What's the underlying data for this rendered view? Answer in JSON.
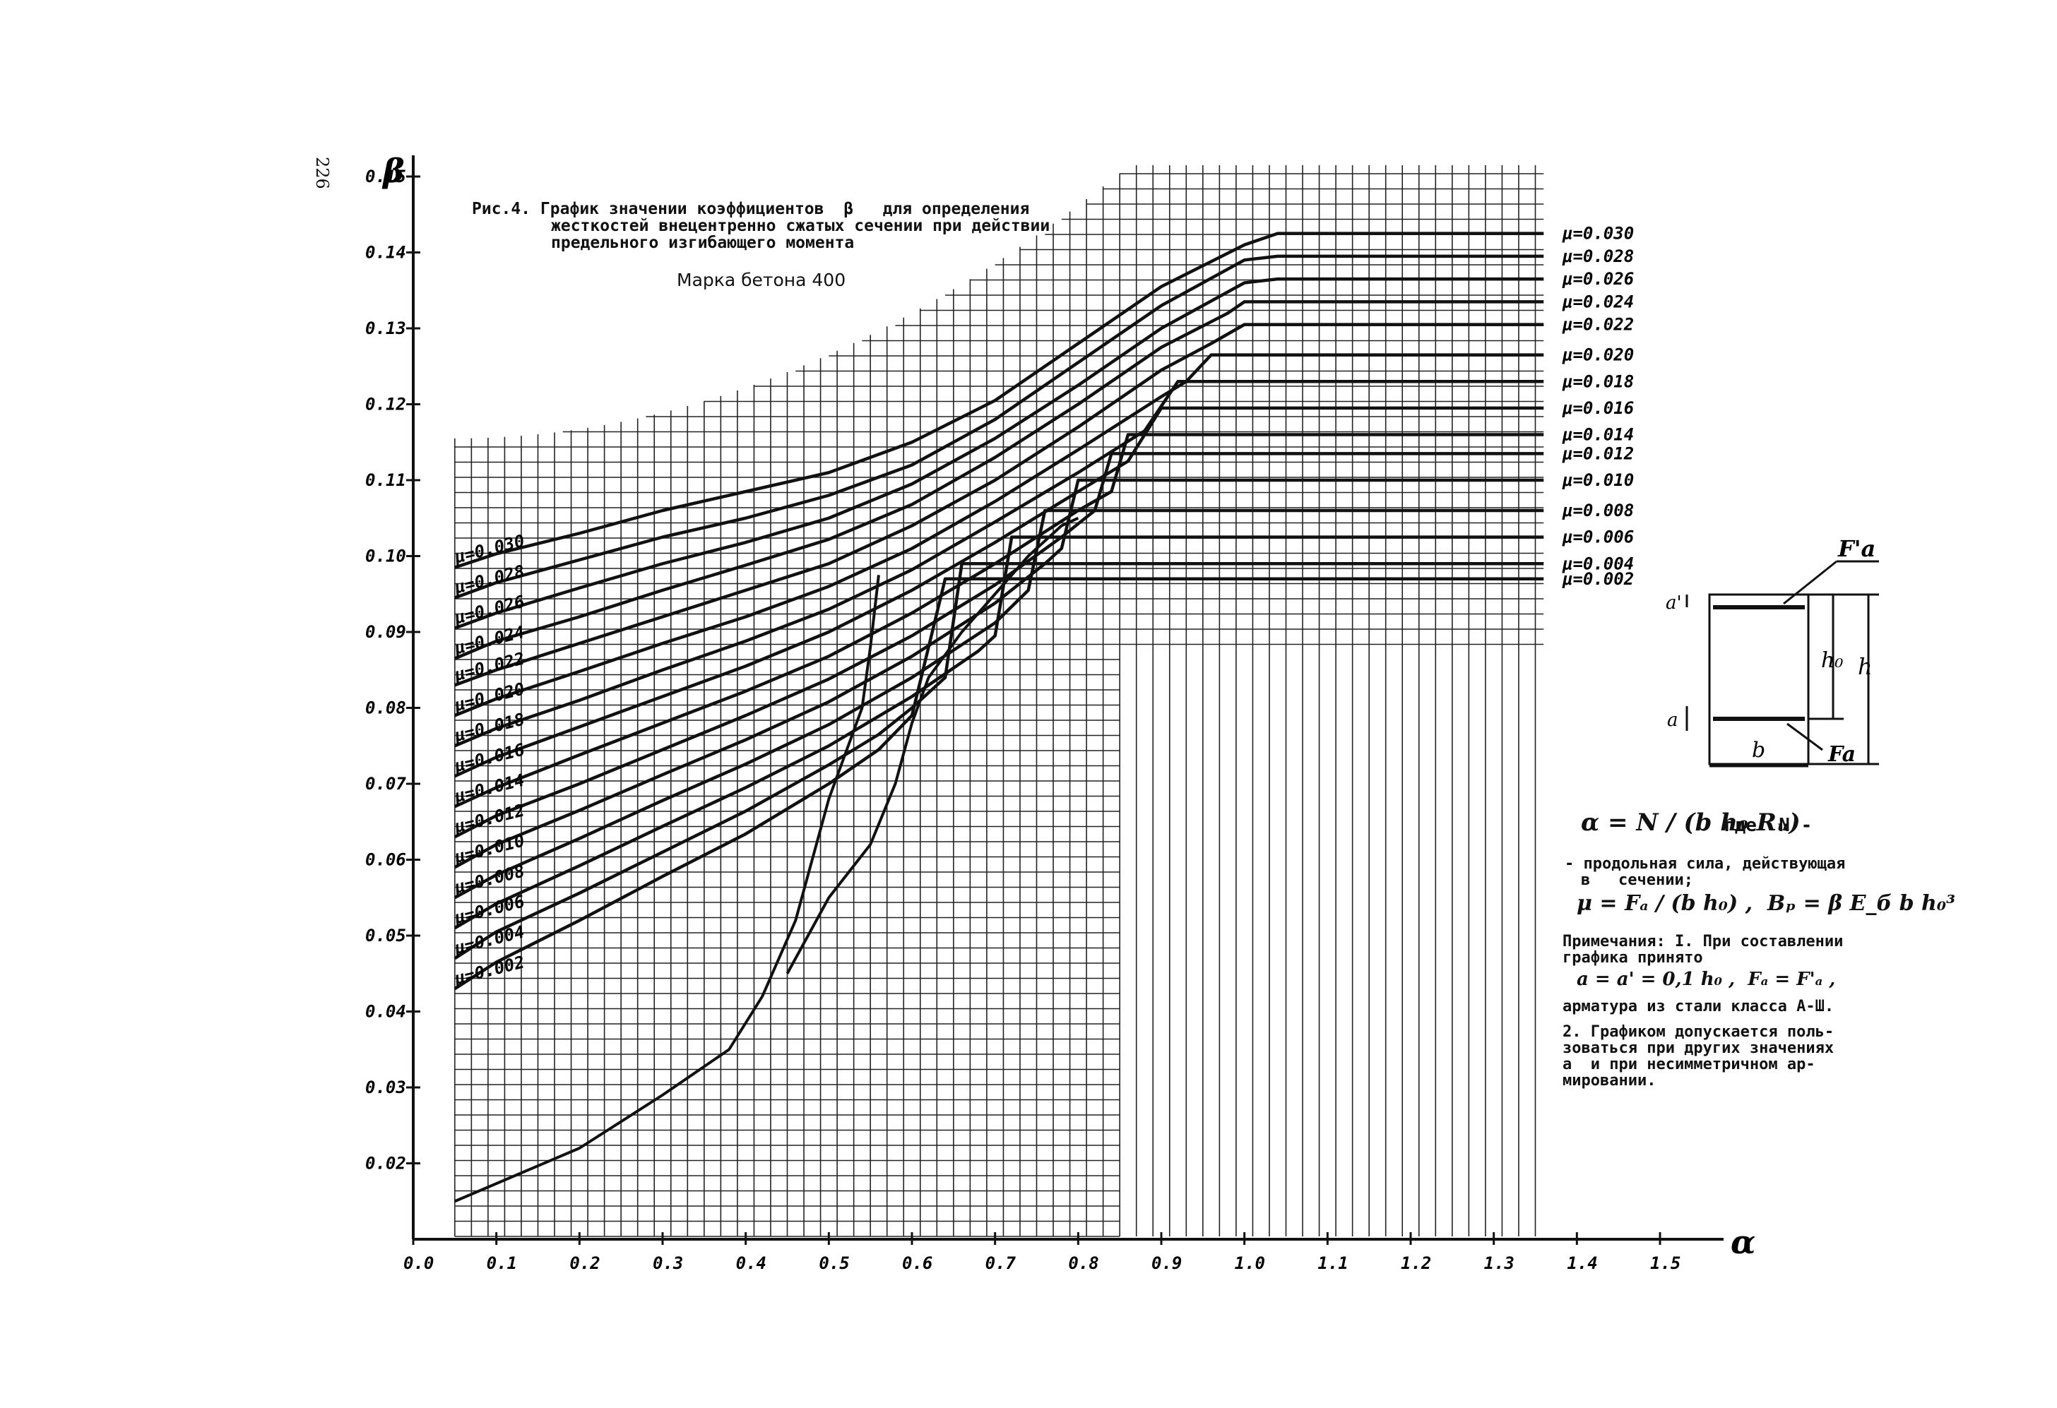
{
  "page_number": "226",
  "caption": {
    "line1": "Рис.4. График значении коэффициентов  β   для определения",
    "line2": "жесткостей внецентренно сжатых сечении при действии",
    "line3": "предельного изгибающего момента"
  },
  "concrete_grade": "Марка бетона 400",
  "notes": {
    "alpha_formula": "α = N / (b h₀ Rᵤ)",
    "where_label": "где  N -",
    "where_line1": "- продольная сила, действующая",
    "where_line2": "в   сечении;",
    "mu_formula": "μ = Fₐ / (b h₀) ,  Bₚ = β E_б b h₀³",
    "remarks_line1": "Примечания: I. При составлении",
    "remarks_line2": "графика принято",
    "remarks_formula": "a = a' = 0,1 h₀ ,  Fₐ = F'ₐ ,",
    "remarks_line3": "арматура из стали класса А-Ш.",
    "remarks_line4": "2. Графиком допускается поль-",
    "remarks_line5": "зоваться при других значениях",
    "remarks_line6": "a  и при несимметричном ар-",
    "remarks_line7": "мировании."
  },
  "section_diagram": {
    "label_Fa_top": "F'a",
    "label_Fa_bottom": "Fa",
    "label_a_top": "a'",
    "label_a_bottom": "a",
    "label_h0": "h₀",
    "label_h": "h",
    "label_b": "b"
  },
  "chart_data": {
    "type": "line",
    "title": "График значении коэффициентов β",
    "xlabel": "α",
    "ylabel": "β",
    "xlim": [
      0.0,
      1.5
    ],
    "ylim": [
      0.01,
      0.15
    ],
    "grid": true,
    "x_ticks": [
      "0.0",
      "0.1",
      "0.2",
      "0.3",
      "0.4",
      "0.5",
      "0.6",
      "0.7",
      "0.8",
      "0.9",
      "1.0",
      "1.1",
      "1.2",
      "1.3",
      "1.4",
      "1.5"
    ],
    "y_ticks": [
      "0.02",
      "0.03",
      "0.04",
      "0.05",
      "0.06",
      "0.07",
      "0.08",
      "0.09",
      "0.10",
      "0.11",
      "0.12",
      "0.13",
      "0.14",
      "0.15"
    ],
    "left_labels": [
      "μ=0.030",
      "μ=0.028",
      "μ=0.026",
      "μ=0.024",
      "μ=0.022",
      "μ=0.020",
      "μ=0.018",
      "μ=0.016",
      "μ=0.014",
      "μ=0.012",
      "μ=0.010",
      "μ=0.008",
      "μ=0.006",
      "μ=0.004",
      "μ=0.002"
    ],
    "right_labels": [
      "μ=0.030",
      "μ=0.028",
      "μ=0.026",
      "μ=0.024",
      "μ=0.022",
      "μ=0.020",
      "μ=0.018",
      "μ=0.016",
      "μ=0.014",
      "μ=0.012",
      "μ=0.010",
      "μ=0.008",
      "μ=0.006",
      "μ=0.004",
      "μ=0.002"
    ],
    "series": [
      {
        "name": "μ=0.030",
        "x": [
          0.05,
          0.1,
          0.2,
          0.3,
          0.4,
          0.5,
          0.6,
          0.7,
          0.8,
          0.9,
          1.0,
          1.04,
          1.36
        ],
        "y": [
          0.0985,
          0.1003,
          0.103,
          0.106,
          0.1085,
          0.111,
          0.115,
          0.1205,
          0.128,
          0.1355,
          0.141,
          0.1425,
          0.1425
        ]
      },
      {
        "name": "μ=0.028",
        "x": [
          0.05,
          0.1,
          0.2,
          0.3,
          0.4,
          0.5,
          0.6,
          0.7,
          0.8,
          0.9,
          1.0,
          1.04,
          1.36
        ],
        "y": [
          0.0945,
          0.0965,
          0.0995,
          0.1025,
          0.105,
          0.108,
          0.112,
          0.118,
          0.1255,
          0.133,
          0.139,
          0.1395,
          0.1395
        ]
      },
      {
        "name": "μ=0.026",
        "x": [
          0.05,
          0.1,
          0.2,
          0.3,
          0.4,
          0.5,
          0.6,
          0.7,
          0.8,
          0.9,
          1.0,
          1.04,
          1.36
        ],
        "y": [
          0.0905,
          0.0925,
          0.0958,
          0.099,
          0.1018,
          0.105,
          0.1095,
          0.1155,
          0.1225,
          0.13,
          0.136,
          0.1365,
          0.1365
        ]
      },
      {
        "name": "μ=0.024",
        "x": [
          0.05,
          0.1,
          0.2,
          0.3,
          0.4,
          0.5,
          0.6,
          0.7,
          0.8,
          0.9,
          0.98,
          1.0,
          1.36
        ],
        "y": [
          0.0865,
          0.0888,
          0.092,
          0.0955,
          0.0988,
          0.1022,
          0.1068,
          0.113,
          0.12,
          0.1275,
          0.132,
          0.1335,
          0.1335
        ]
      },
      {
        "name": "μ=0.022",
        "x": [
          0.05,
          0.1,
          0.2,
          0.3,
          0.4,
          0.5,
          0.6,
          0.7,
          0.8,
          0.9,
          0.96,
          1.0,
          1.36
        ],
        "y": [
          0.083,
          0.085,
          0.0885,
          0.092,
          0.0955,
          0.099,
          0.104,
          0.11,
          0.117,
          0.1245,
          0.128,
          0.1305,
          0.1305
        ]
      },
      {
        "name": "μ=0.020",
        "x": [
          0.05,
          0.1,
          0.2,
          0.3,
          0.4,
          0.5,
          0.6,
          0.7,
          0.8,
          0.9,
          0.93,
          0.96,
          1.36
        ],
        "y": [
          0.079,
          0.0812,
          0.0848,
          0.0885,
          0.092,
          0.096,
          0.101,
          0.1072,
          0.114,
          0.121,
          0.123,
          0.1265,
          0.1265
        ]
      },
      {
        "name": "μ=0.018",
        "x": [
          0.05,
          0.1,
          0.2,
          0.3,
          0.4,
          0.5,
          0.6,
          0.7,
          0.8,
          0.88,
          0.92,
          1.36
        ],
        "y": [
          0.075,
          0.0773,
          0.081,
          0.085,
          0.0888,
          0.093,
          0.0982,
          0.1045,
          0.111,
          0.1165,
          0.123,
          0.123
        ]
      },
      {
        "name": "μ=0.016",
        "x": [
          0.05,
          0.1,
          0.2,
          0.3,
          0.4,
          0.5,
          0.6,
          0.7,
          0.8,
          0.86,
          0.9,
          1.36
        ],
        "y": [
          0.071,
          0.0735,
          0.0775,
          0.0815,
          0.0855,
          0.09,
          0.0955,
          0.1018,
          0.1085,
          0.1125,
          0.1195,
          0.1195
        ]
      },
      {
        "name": "μ=0.014",
        "x": [
          0.05,
          0.1,
          0.2,
          0.3,
          0.4,
          0.5,
          0.6,
          0.7,
          0.8,
          0.84,
          0.86,
          1.36
        ],
        "y": [
          0.067,
          0.0695,
          0.0738,
          0.078,
          0.0822,
          0.0868,
          0.0925,
          0.099,
          0.106,
          0.1085,
          0.116,
          0.116
        ]
      },
      {
        "name": "μ=0.012",
        "x": [
          0.05,
          0.1,
          0.2,
          0.3,
          0.4,
          0.5,
          0.6,
          0.7,
          0.78,
          0.82,
          0.84,
          1.36
        ],
        "y": [
          0.063,
          0.0658,
          0.07,
          0.0745,
          0.079,
          0.0838,
          0.0895,
          0.0962,
          0.1025,
          0.106,
          0.1135,
          0.1135
        ]
      },
      {
        "name": "μ=0.010",
        "x": [
          0.05,
          0.1,
          0.2,
          0.3,
          0.4,
          0.5,
          0.6,
          0.7,
          0.76,
          0.78,
          0.8,
          1.36
        ],
        "y": [
          0.059,
          0.062,
          0.0665,
          0.0712,
          0.0758,
          0.0808,
          0.0868,
          0.0938,
          0.099,
          0.101,
          0.11,
          0.11
        ]
      },
      {
        "name": "μ=0.008",
        "x": [
          0.05,
          0.1,
          0.2,
          0.3,
          0.4,
          0.5,
          0.6,
          0.7,
          0.74,
          0.76,
          1.36
        ],
        "y": [
          0.055,
          0.058,
          0.0628,
          0.0678,
          0.0726,
          0.0778,
          0.084,
          0.0912,
          0.0955,
          0.106,
          0.106
        ]
      },
      {
        "name": "μ=0.006",
        "x": [
          0.05,
          0.1,
          0.2,
          0.3,
          0.4,
          0.5,
          0.6,
          0.68,
          0.7,
          0.72,
          1.36
        ],
        "y": [
          0.051,
          0.0542,
          0.0592,
          0.0644,
          0.0695,
          0.075,
          0.0815,
          0.0875,
          0.0895,
          0.1025,
          0.1025
        ]
      },
      {
        "name": "μ=0.004",
        "x": [
          0.05,
          0.1,
          0.2,
          0.3,
          0.4,
          0.5,
          0.56,
          0.6,
          0.64,
          0.66,
          0.7,
          1.36
        ],
        "y": [
          0.047,
          0.0505,
          0.0556,
          0.061,
          0.0664,
          0.0725,
          0.0765,
          0.08,
          0.084,
          0.099,
          0.099,
          0.099
        ]
      },
      {
        "name": "μ=0.002",
        "x": [
          0.05,
          0.1,
          0.2,
          0.3,
          0.4,
          0.5,
          0.56,
          0.6,
          0.64,
          0.7,
          1.36
        ],
        "y": [
          0.043,
          0.0465,
          0.052,
          0.0578,
          0.0634,
          0.07,
          0.0745,
          0.079,
          0.097,
          0.097,
          0.097
        ]
      }
    ],
    "limit_curves": [
      {
        "name": "",
        "x": [
          0.05,
          0.2,
          0.3,
          0.38,
          0.42,
          0.46,
          0.48,
          0.5,
          0.52,
          0.54,
          0.55,
          0.56
        ],
        "y": [
          0.015,
          0.022,
          0.029,
          0.035,
          0.042,
          0.052,
          0.06,
          0.068,
          0.074,
          0.08,
          0.088,
          0.0975
        ]
      },
      {
        "name": "",
        "x": [
          0.45,
          0.5,
          0.55,
          0.58,
          0.6,
          0.62,
          0.64,
          0.66,
          0.7,
          0.74,
          0.78,
          0.8
        ],
        "y": [
          0.045,
          0.055,
          0.062,
          0.07,
          0.078,
          0.084,
          0.087,
          0.09,
          0.095,
          0.1,
          0.104,
          0.105
        ]
      }
    ]
  }
}
